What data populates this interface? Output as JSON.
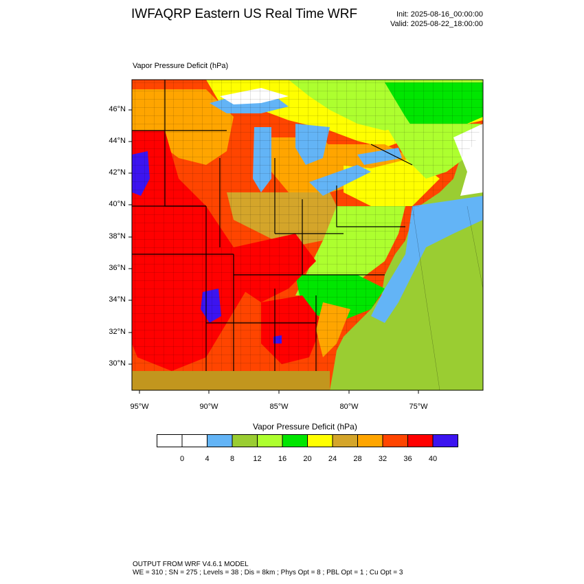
{
  "header": {
    "title": "IWFAQRP Eastern US Real Time WRF",
    "init": "Init: 2025-08-16_00:00:00",
    "valid": "Valid: 2025-08-22_18:00:00"
  },
  "map": {
    "field_label": "Vapor Pressure Deficit   (hPa)",
    "lat_labels": [
      "46°N",
      "44°N",
      "42°N",
      "40°N",
      "38°N",
      "36°N",
      "34°N",
      "32°N",
      "30°N"
    ],
    "lon_labels": [
      "95°W",
      "90°W",
      "85°W",
      "80°W",
      "75°W"
    ],
    "colors": {
      "water": "#63b4f6",
      "ocean_low": "#9acd32",
      "hot": "#ff0000",
      "very_hot": "#3c14f0"
    }
  },
  "colorbar": {
    "title": "Vapor Pressure Deficit  (hPa)",
    "labels": [
      "0",
      "4",
      "8",
      "12",
      "16",
      "20",
      "24",
      "28",
      "32",
      "36",
      "40"
    ],
    "colors": [
      "#ffffff",
      "#ffffff",
      "#63b4f6",
      "#9acd32",
      "#adff2f",
      "#00e600",
      "#ffff00",
      "#d4a52a",
      "#ffa500",
      "#ff4500",
      "#ff0000",
      "#3c14f0"
    ]
  },
  "footer": {
    "line1": "OUTPUT FROM WRF V4.6.1 MODEL",
    "line2": "WE = 310 ; SN = 275 ; Levels = 38 ; Dis = 8km ; Phys Opt = 8 ; PBL Opt = 1 ; Cu Opt = 3"
  }
}
